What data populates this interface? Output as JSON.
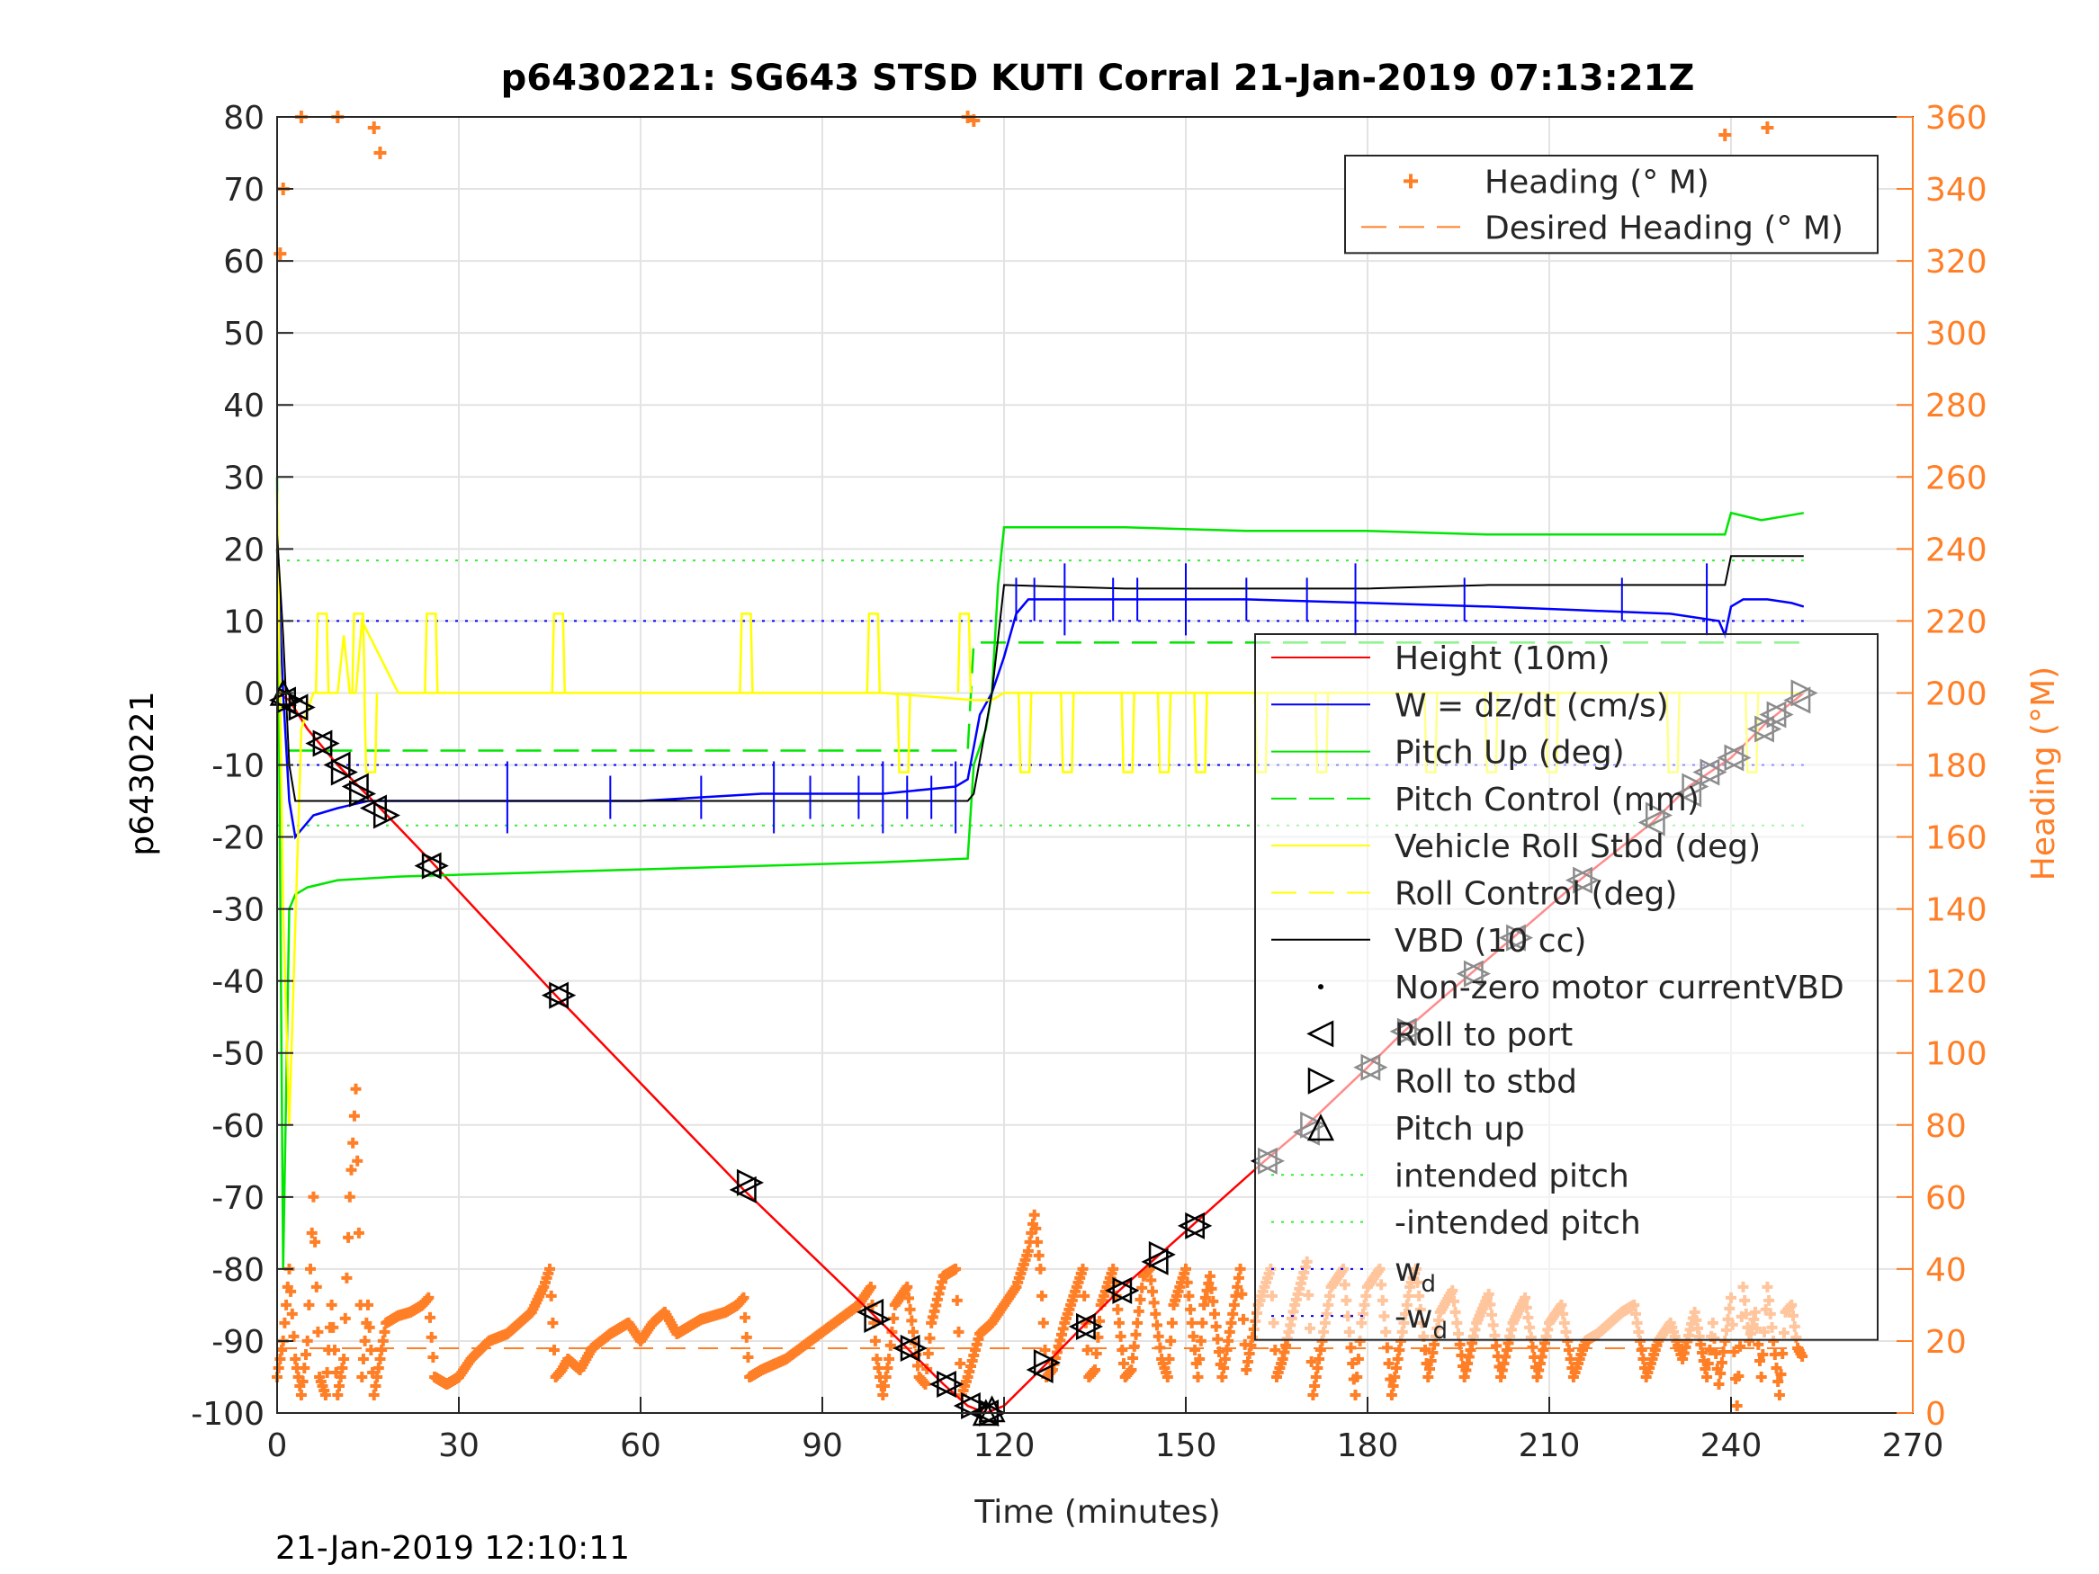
{
  "chart_data": {
    "type": "line",
    "title": "p6430221: SG643 STSD KUTI Corral 21-Jan-2019 07:13:21Z",
    "xlabel": "Time (minutes)",
    "ylabel": "p6430221",
    "ylabel_right": "Heading (°M)",
    "xlim": [
      0,
      270
    ],
    "ylim": [
      -100,
      80
    ],
    "ylim_right": [
      0,
      360
    ],
    "x_ticks": [
      "0",
      "30",
      "60",
      "90",
      "120",
      "150",
      "180",
      "210",
      "240",
      "270"
    ],
    "y_ticks": [
      "80",
      "70",
      "60",
      "50",
      "40",
      "30",
      "20",
      "10",
      "0",
      "-10",
      "-20",
      "-30",
      "-40",
      "-50",
      "-60",
      "-70",
      "-80",
      "-90",
      "-100"
    ],
    "y_right_ticks": [
      "360",
      "340",
      "320",
      "300",
      "280",
      "260",
      "240",
      "220",
      "200",
      "180",
      "160",
      "140",
      "120",
      "100",
      "80",
      "60",
      "40",
      "20",
      "0"
    ],
    "grid": true,
    "footer_timestamp": "21-Jan-2019 12:10:11",
    "colors": {
      "height": "#ff0000",
      "w": "#0000ff",
      "pitch": "#00e600",
      "roll": "#ffff00",
      "vbd": "#000000",
      "heading": "#ff7f27",
      "wd": "#0000ff",
      "intended_pitch": "#33ee33"
    },
    "legend_heading": [
      {
        "label": "Heading (° M)",
        "style": "plus",
        "color": "#ff7f27"
      },
      {
        "label": "Desired Heading (° M)",
        "style": "dash",
        "color": "#ff7f27"
      }
    ],
    "legend_main": [
      {
        "label": "Height (10m)",
        "style": "solid",
        "color": "#ff0000"
      },
      {
        "label": "W = dz/dt (cm/s)",
        "style": "solid",
        "color": "#0000ff"
      },
      {
        "label": "Pitch Up (deg)",
        "style": "solid",
        "color": "#00e600"
      },
      {
        "label": "Pitch Control (mm)",
        "style": "dash",
        "color": "#00e600"
      },
      {
        "label": "Vehicle Roll Stbd (deg)",
        "style": "solid",
        "color": "#ffff00"
      },
      {
        "label": "Roll Control (deg)",
        "style": "dash",
        "color": "#ffff00"
      },
      {
        "label": "VBD (10 cc)",
        "style": "solid",
        "color": "#000000"
      },
      {
        "label": "Non-zero motor currentVBD",
        "style": "dot",
        "color": "#000000"
      },
      {
        "label": "Roll to port",
        "style": "tri-left",
        "color": "#000000"
      },
      {
        "label": "Roll to stbd",
        "style": "tri-right",
        "color": "#000000"
      },
      {
        "label": "Pitch up",
        "style": "tri-up",
        "color": "#000000"
      },
      {
        "label": "intended pitch",
        "style": "dotted",
        "color": "#33ee33"
      },
      {
        "label": "-intended pitch",
        "style": "dotted",
        "color": "#33ee33"
      },
      {
        "label": "w",
        "sub": "d",
        "style": "dotted",
        "color": "#0000ff"
      },
      {
        "label": "-w",
        "sub": "d",
        "style": "dotted",
        "color": "#0000ff"
      }
    ],
    "series": [
      {
        "name": "Height (10m)",
        "color": "#ff0000",
        "x": [
          0,
          2,
          5,
          10,
          17,
          25,
          46,
          77,
          98,
          104,
          110,
          114,
          117,
          120,
          126,
          133,
          139,
          151,
          163,
          170,
          180,
          186,
          197,
          204,
          215,
          227,
          233,
          240,
          246,
          252
        ],
        "y": [
          0,
          -1,
          -5,
          -10,
          -16,
          -23,
          -42,
          -69,
          -86,
          -91,
          -96,
          -99,
          -100,
          -99,
          -94,
          -88,
          -83,
          -74,
          -65,
          -60,
          -52,
          -47,
          -39,
          -34,
          -26,
          -18,
          -13,
          -9,
          -4,
          0
        ]
      },
      {
        "name": "W = dz/dt (cm/s)",
        "color": "#0000ff",
        "x": [
          0,
          1,
          2,
          3,
          4,
          6,
          10,
          15,
          20,
          40,
          60,
          80,
          100,
          112,
          114,
          116,
          118,
          120,
          122,
          124,
          140,
          160,
          180,
          200,
          215,
          230,
          238,
          239,
          240,
          242,
          246,
          250,
          252
        ],
        "y": [
          20,
          0,
          -15,
          -20,
          -19,
          -17,
          -16,
          -15,
          -15,
          -15,
          -15,
          -14,
          -14,
          -13,
          -12,
          -3,
          0,
          5,
          11,
          13,
          13,
          13,
          12.5,
          12,
          11.5,
          11,
          10,
          8,
          12,
          13,
          13,
          12.5,
          12
        ]
      },
      {
        "name": "Pitch Up (deg)",
        "color": "#00e600",
        "x": [
          0,
          1,
          2,
          3,
          5,
          10,
          20,
          40,
          60,
          80,
          100,
          114,
          115,
          117,
          118,
          119,
          120,
          125,
          140,
          160,
          180,
          200,
          220,
          239,
          240,
          245,
          252
        ],
        "y": [
          30,
          -80,
          -30,
          -28,
          -27,
          -26,
          -25.5,
          -25,
          -24.5,
          -24,
          -23.5,
          -23,
          -10,
          -5,
          0,
          15,
          23,
          23,
          23,
          22.5,
          22.5,
          22,
          22,
          22,
          25,
          24,
          25
        ]
      },
      {
        "name": "Pitch Control (mm)",
        "color": "#00e600",
        "dash": "28 14",
        "x": [
          2,
          114,
          115,
          252
        ],
        "y": [
          -8,
          -8,
          7,
          7
        ]
      },
      {
        "name": "Vehicle Roll Stbd (deg)",
        "color": "#ffff00",
        "x": [
          0,
          1,
          2,
          4,
          6,
          8,
          10,
          11,
          12,
          13,
          14,
          20,
          40,
          60,
          80,
          100,
          115,
          118,
          120,
          130,
          140,
          150,
          160,
          170,
          180,
          190,
          200,
          210,
          220,
          230,
          240,
          245,
          250,
          252
        ],
        "y": [
          28,
          -30,
          -60,
          -5,
          0,
          0,
          0,
          8,
          0,
          0,
          10,
          0,
          0,
          0,
          0,
          0,
          -1,
          -1,
          0,
          0,
          0,
          0,
          0,
          0,
          0,
          0,
          0,
          0,
          0,
          0,
          0,
          0,
          0,
          0
        ]
      },
      {
        "name": "VBD (10 cc)",
        "color": "#000000",
        "x": [
          0,
          1,
          2,
          3,
          50,
          100,
          114,
          115,
          118,
          120,
          140,
          160,
          180,
          200,
          220,
          239,
          240,
          252
        ],
        "y": [
          22,
          8,
          -10,
          -15,
          -15,
          -15,
          -15,
          -14,
          0,
          15,
          14.5,
          14.5,
          14.5,
          15,
          15,
          15,
          19,
          19
        ]
      }
    ],
    "roll_spikes_pos_x": [
      7,
      13,
      25,
      46,
      77,
      98,
      113
    ],
    "roll_spikes_neg_x": [
      15,
      103,
      123,
      130,
      140,
      146,
      152,
      162,
      172,
      190,
      200,
      210,
      230,
      243
    ],
    "reference_lines": [
      {
        "name": "intended pitch",
        "y": 18.4,
        "color": "#33ee33",
        "style": "dotted"
      },
      {
        "name": "-intended pitch",
        "y": -18.4,
        "color": "#33ee33",
        "style": "dotted"
      },
      {
        "name": "w_d",
        "y": 10,
        "color": "#0000ff",
        "style": "dotted"
      },
      {
        "name": "-w_d",
        "y": -10,
        "color": "#0000ff",
        "style": "dotted"
      }
    ],
    "desired_heading": 18,
    "heading_markers": [
      {
        "x": 1,
        "y": 340
      },
      {
        "x": 0.5,
        "y": 322
      },
      {
        "x": 4,
        "y": 360
      },
      {
        "x": 10,
        "y": 360
      },
      {
        "x": 16,
        "y": 357
      },
      {
        "x": 17,
        "y": 350
      },
      {
        "x": 114,
        "y": 360
      },
      {
        "x": 115,
        "y": 359
      },
      {
        "x": 239,
        "y": 355
      },
      {
        "x": 240,
        "y": 345
      },
      {
        "x": 246,
        "y": 357
      }
    ],
    "heading": {
      "x": [
        0,
        1,
        2,
        3,
        4,
        5,
        6,
        7,
        8,
        9,
        10,
        11,
        12,
        13,
        14,
        15,
        16,
        17,
        18,
        20,
        22,
        24,
        25,
        26,
        28,
        30,
        32,
        35,
        38,
        40,
        42,
        44,
        45,
        46,
        47,
        48,
        50,
        52,
        55,
        58,
        60,
        62,
        64,
        66,
        70,
        74,
        76,
        77,
        78,
        80,
        84,
        88,
        92,
        96,
        98,
        99,
        100,
        101,
        102,
        104,
        106,
        107,
        108,
        110,
        112,
        113,
        114,
        116,
        118,
        120,
        122,
        124,
        125,
        126,
        127,
        128,
        130,
        132,
        133,
        134,
        135,
        136,
        138,
        140,
        141,
        142,
        143,
        144,
        146,
        147,
        148,
        150,
        152,
        153,
        154,
        156,
        158,
        159,
        160,
        162,
        164,
        165,
        166,
        168,
        170,
        171,
        172,
        174,
        176,
        178,
        179,
        180,
        182,
        184,
        186,
        187,
        188,
        190,
        192,
        194,
        196,
        198,
        200,
        202,
        204,
        206,
        208,
        210,
        212,
        214,
        216,
        218,
        220,
        222,
        224,
        226,
        228,
        230,
        232,
        234,
        236,
        237,
        238,
        239,
        240,
        241,
        242,
        243,
        244,
        245,
        246,
        247,
        248,
        249,
        250,
        251,
        252
      ],
      "y": [
        10,
        20,
        40,
        15,
        5,
        20,
        60,
        10,
        5,
        30,
        5,
        15,
        60,
        90,
        10,
        30,
        5,
        15,
        25,
        27,
        28,
        30,
        32,
        10,
        8,
        10,
        15,
        20,
        22,
        25,
        28,
        35,
        40,
        10,
        12,
        15,
        12,
        18,
        22,
        25,
        20,
        25,
        28,
        22,
        26,
        28,
        30,
        32,
        10,
        12,
        15,
        20,
        25,
        30,
        35,
        15,
        5,
        15,
        30,
        35,
        10,
        8,
        25,
        38,
        40,
        5,
        10,
        22,
        25,
        30,
        35,
        45,
        55,
        40,
        10,
        12,
        25,
        35,
        40,
        10,
        12,
        30,
        40,
        10,
        12,
        25,
        38,
        40,
        15,
        10,
        30,
        40,
        10,
        30,
        38,
        10,
        30,
        40,
        12,
        30,
        40,
        10,
        15,
        30,
        42,
        5,
        15,
        35,
        40,
        5,
        25,
        35,
        40,
        5,
        25,
        35,
        40,
        10,
        28,
        34,
        10,
        25,
        33,
        10,
        25,
        32,
        10,
        25,
        30,
        10,
        20,
        22,
        25,
        28,
        30,
        10,
        20,
        25,
        15,
        28,
        10,
        25,
        8,
        20,
        32,
        2,
        35,
        20,
        28,
        10,
        35,
        20,
        5,
        28,
        30,
        18,
        15
      ]
    },
    "roll_port_markers": [
      {
        "x": 1,
        "y": -1
      },
      {
        "x": 3,
        "y": -2
      },
      {
        "x": 7,
        "y": -7
      },
      {
        "x": 10,
        "y": -10
      },
      {
        "x": 13,
        "y": -13
      },
      {
        "x": 16,
        "y": -16
      },
      {
        "x": 25,
        "y": -24
      },
      {
        "x": 46,
        "y": -42
      },
      {
        "x": 77,
        "y": -69
      },
      {
        "x": 98,
        "y": -86
      },
      {
        "x": 104,
        "y": -91
      },
      {
        "x": 110,
        "y": -96
      },
      {
        "x": 114,
        "y": -99
      },
      {
        "x": 117,
        "y": -100
      },
      {
        "x": 126,
        "y": -94
      },
      {
        "x": 133,
        "y": -88
      },
      {
        "x": 139,
        "y": -83
      },
      {
        "x": 145,
        "y": -79
      },
      {
        "x": 151,
        "y": -74
      },
      {
        "x": 163,
        "y": -65
      },
      {
        "x": 170,
        "y": -61
      },
      {
        "x": 180,
        "y": -52
      },
      {
        "x": 186,
        "y": -47
      },
      {
        "x": 197,
        "y": -39
      },
      {
        "x": 204,
        "y": -34
      },
      {
        "x": 215,
        "y": -26
      },
      {
        "x": 227,
        "y": -18
      },
      {
        "x": 233,
        "y": -14
      },
      {
        "x": 236,
        "y": -11
      },
      {
        "x": 240,
        "y": -9
      },
      {
        "x": 245,
        "y": -5
      },
      {
        "x": 247,
        "y": -3
      },
      {
        "x": 251,
        "y": -1
      }
    ],
    "roll_stbd_markers": [
      {
        "x": 2,
        "y": -1
      },
      {
        "x": 4,
        "y": -2
      },
      {
        "x": 8,
        "y": -7
      },
      {
        "x": 11,
        "y": -11
      },
      {
        "x": 14,
        "y": -14
      },
      {
        "x": 18,
        "y": -17
      },
      {
        "x": 26,
        "y": -24
      },
      {
        "x": 47,
        "y": -42
      },
      {
        "x": 78,
        "y": -68
      },
      {
        "x": 99,
        "y": -87
      },
      {
        "x": 105,
        "y": -91
      },
      {
        "x": 111,
        "y": -96
      },
      {
        "x": 115,
        "y": -99
      },
      {
        "x": 118,
        "y": -100
      },
      {
        "x": 127,
        "y": -93
      },
      {
        "x": 134,
        "y": -88
      },
      {
        "x": 140,
        "y": -83
      },
      {
        "x": 146,
        "y": -78
      },
      {
        "x": 152,
        "y": -74
      },
      {
        "x": 164,
        "y": -65
      },
      {
        "x": 171,
        "y": -60
      },
      {
        "x": 181,
        "y": -52
      },
      {
        "x": 187,
        "y": -47
      },
      {
        "x": 198,
        "y": -39
      },
      {
        "x": 205,
        "y": -34
      },
      {
        "x": 216,
        "y": -26
      },
      {
        "x": 228,
        "y": -17
      },
      {
        "x": 234,
        "y": -13
      },
      {
        "x": 237,
        "y": -11
      },
      {
        "x": 241,
        "y": -9
      },
      {
        "x": 246,
        "y": -5
      },
      {
        "x": 248,
        "y": -3
      },
      {
        "x": 252,
        "y": 0
      }
    ],
    "pitch_up_markers": [
      {
        "x": 1,
        "y": 0
      },
      {
        "x": 117,
        "y": -100
      },
      {
        "x": 118,
        "y": -99.5
      }
    ]
  }
}
